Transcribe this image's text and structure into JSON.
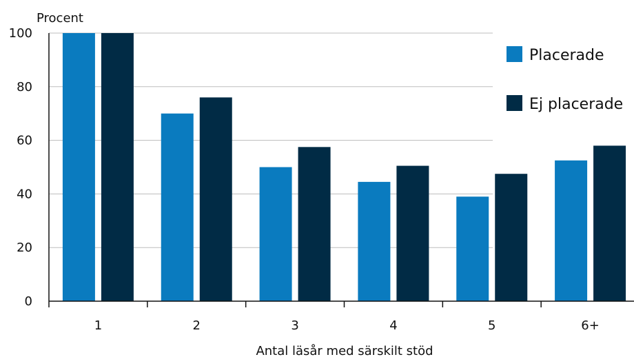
{
  "chart_data": {
    "type": "bar",
    "ylabel": "Procent",
    "xlabel": "Antal läsår med särskilt stöd",
    "categories": [
      "1",
      "2",
      "3",
      "4",
      "5",
      "6+"
    ],
    "ylim": [
      0,
      100
    ],
    "yticks": [
      "0",
      "20",
      "40",
      "60",
      "80",
      "100"
    ],
    "grid": "horizontal",
    "legend_position": "top-right",
    "series": [
      {
        "name": "Placerade",
        "color": "#0a7bbf",
        "values": [
          100,
          70,
          50,
          44.5,
          39,
          52.5
        ]
      },
      {
        "name": "Ej placerade",
        "color": "#012b45",
        "values": [
          100,
          76,
          57.5,
          50.5,
          47.5,
          58
        ]
      }
    ]
  }
}
